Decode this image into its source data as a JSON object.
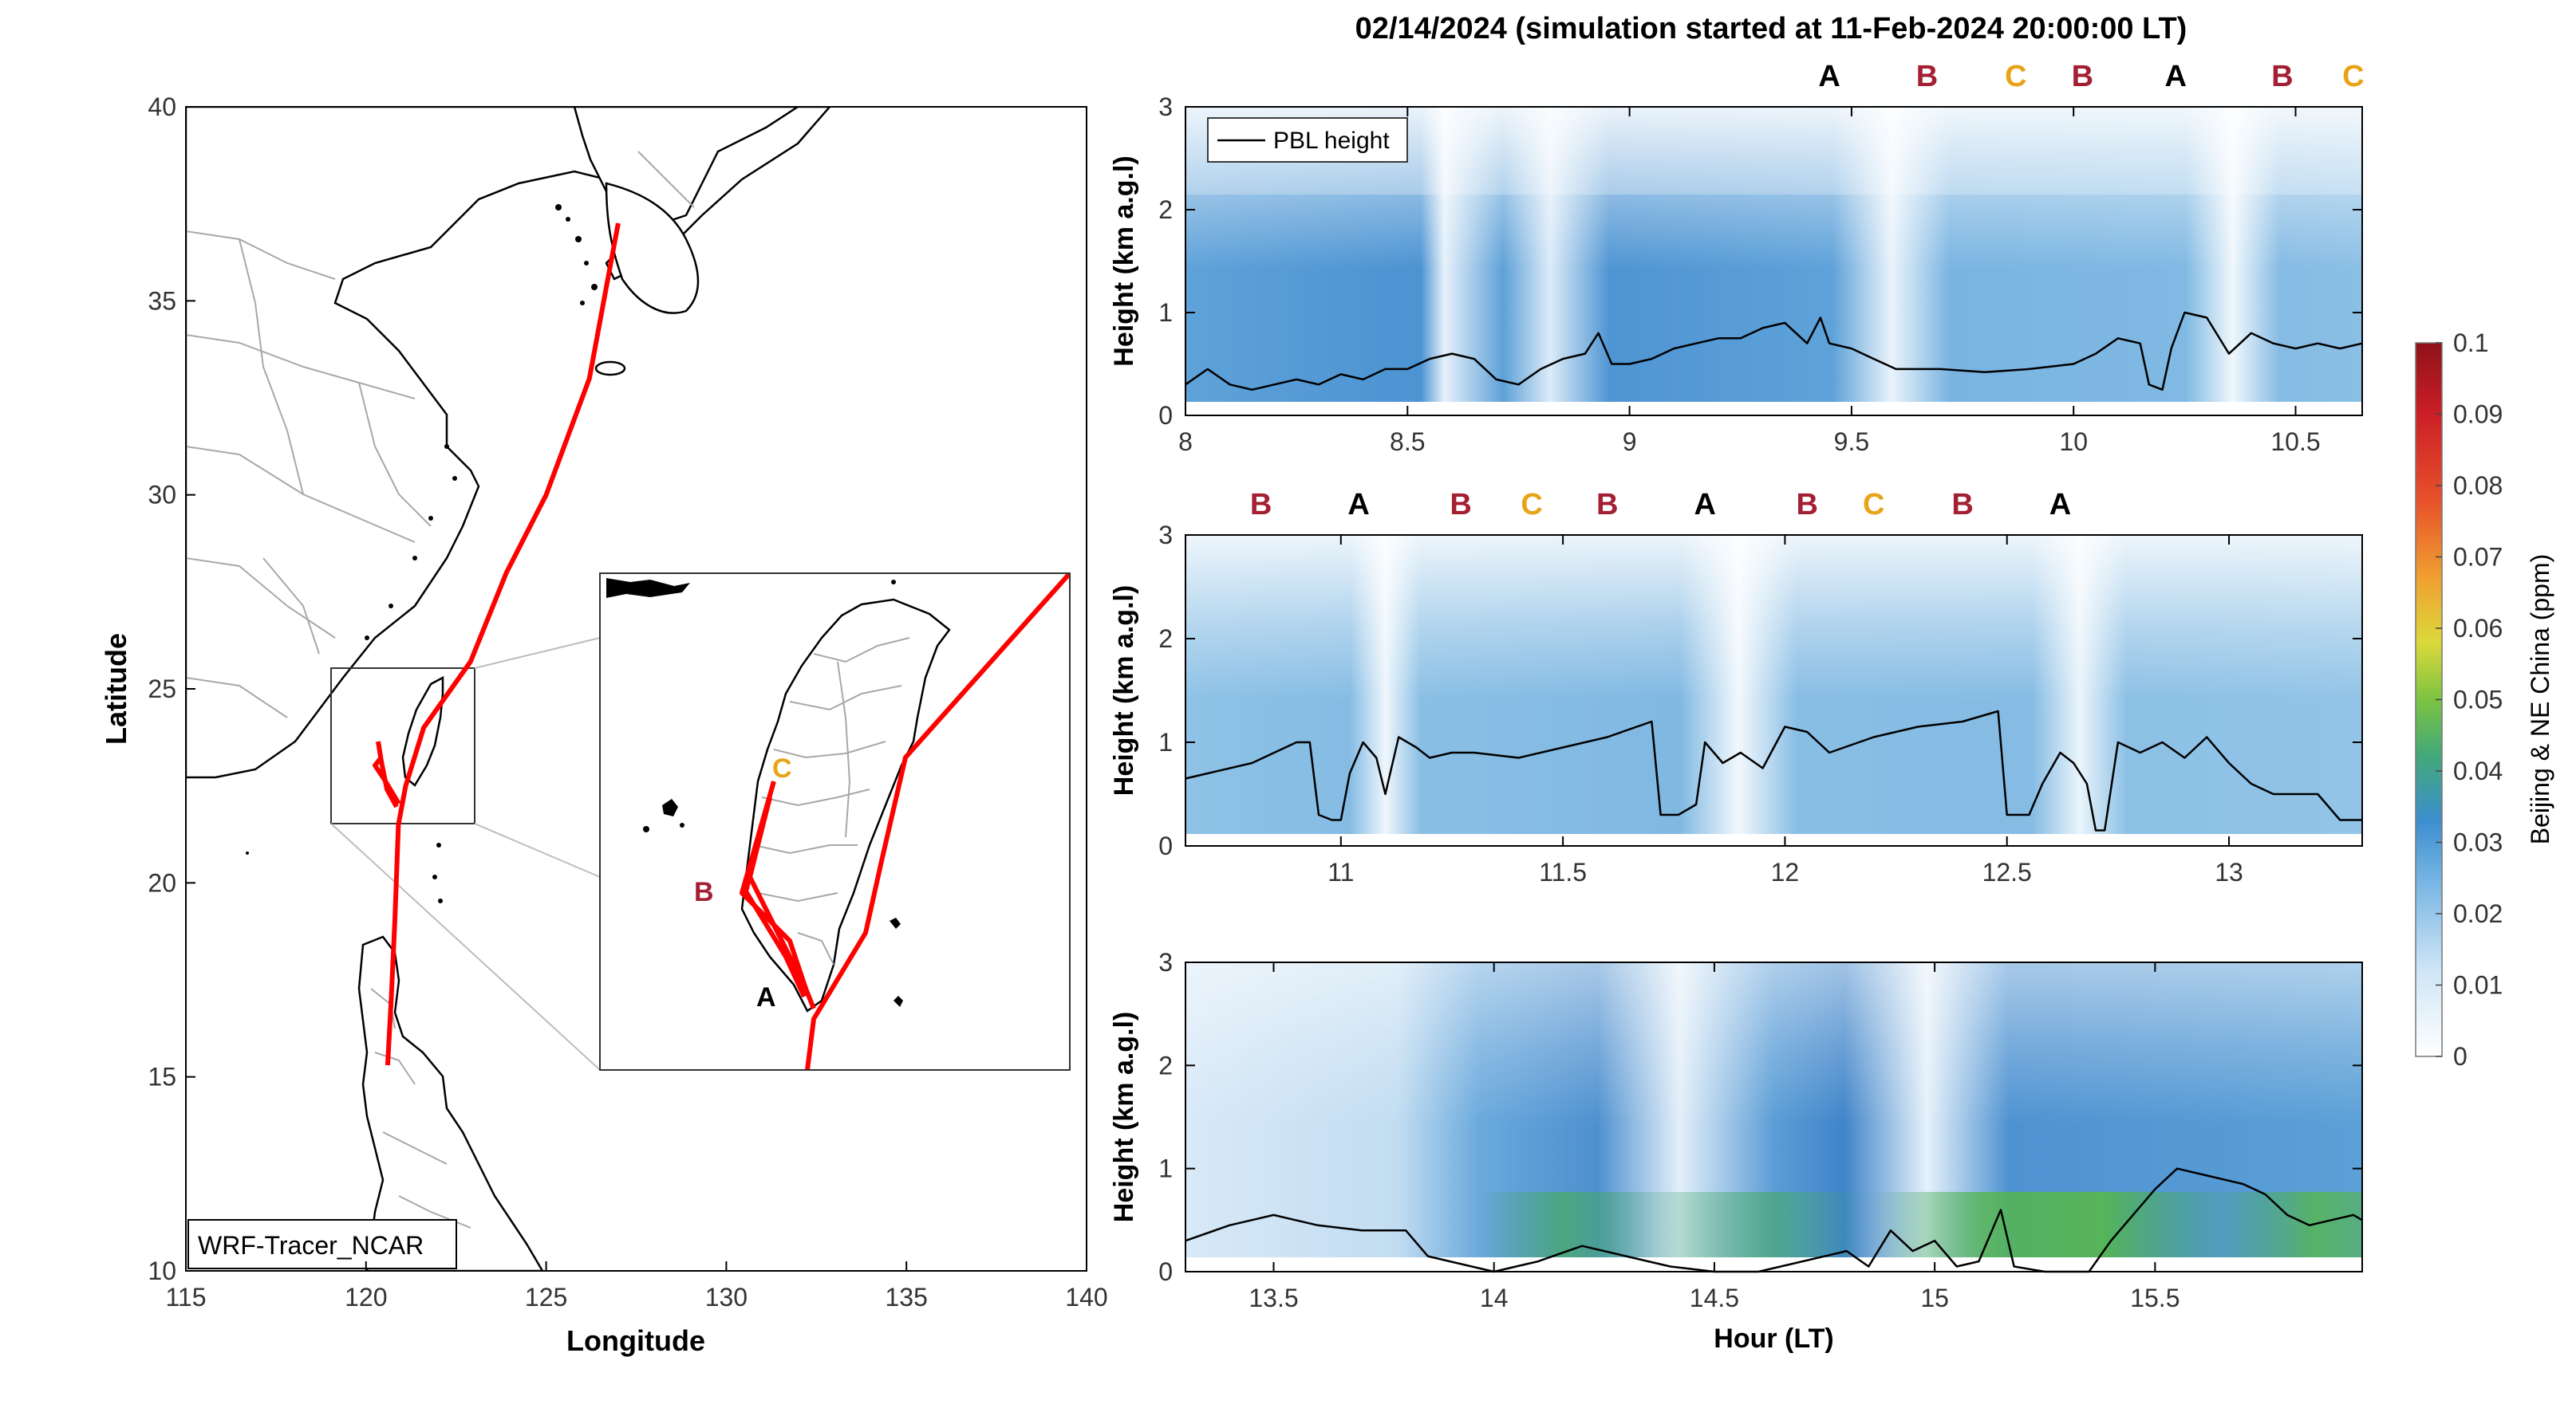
{
  "figure": {
    "title": "02/14/2024 (simulation started at 11-Feb-2024 20:00:00 LT)"
  },
  "map": {
    "xlabel": "Longitude",
    "ylabel": "Latitude",
    "xlim": [
      115,
      140
    ],
    "ylim": [
      10,
      40
    ],
    "xticks": [
      "115",
      "120",
      "125",
      "130",
      "135",
      "140"
    ],
    "yticks": [
      "10",
      "15",
      "20",
      "25",
      "30",
      "35",
      "40"
    ],
    "model_label": "WRF-Tracer_NCAR",
    "track_color": "#ff0000",
    "track": [
      {
        "lon": 127.0,
        "lat": 37.0
      },
      {
        "lon": 126.2,
        "lat": 33.0
      },
      {
        "lon": 125.0,
        "lat": 30.0
      },
      {
        "lon": 123.9,
        "lat": 28.0
      },
      {
        "lon": 122.9,
        "lat": 25.7
      },
      {
        "lon": 121.6,
        "lat": 24.0
      },
      {
        "lon": 121.1,
        "lat": 22.5
      },
      {
        "lon": 120.9,
        "lat": 21.5
      },
      {
        "lon": 120.8,
        "lat": 19.0
      },
      {
        "lon": 120.7,
        "lat": 17.0
      },
      {
        "lon": 120.6,
        "lat": 15.3
      }
    ],
    "inset_letters": [
      {
        "letter": "C",
        "color": "#e8a317"
      },
      {
        "letter": "B",
        "color": "#a31f34"
      },
      {
        "letter": "A",
        "color": "#000000"
      }
    ]
  },
  "chart_data": [
    {
      "type": "heatmap",
      "ylabel": "Height (km a.g.l)",
      "xlim": [
        8.0,
        10.65
      ],
      "ylim": [
        0,
        3
      ],
      "xticks": [
        "8",
        "8.5",
        "9",
        "9.5",
        "10",
        "10.5"
      ],
      "yticks": [
        "0",
        "1",
        "2",
        "3"
      ],
      "legend": "PBL height",
      "markers": [
        {
          "x": 9.45,
          "label": "A",
          "color": "#000000"
        },
        {
          "x": 9.67,
          "label": "B",
          "color": "#a31f34"
        },
        {
          "x": 9.87,
          "label": "C",
          "color": "#e8a317"
        },
        {
          "x": 10.02,
          "label": "B",
          "color": "#a31f34"
        },
        {
          "x": 10.23,
          "label": "A",
          "color": "#000000"
        },
        {
          "x": 10.47,
          "label": "B",
          "color": "#a31f34"
        },
        {
          "x": 10.63,
          "label": "C",
          "color": "#e8a317"
        }
      ],
      "pbl": [
        [
          8.0,
          0.3
        ],
        [
          8.05,
          0.45
        ],
        [
          8.1,
          0.3
        ],
        [
          8.15,
          0.25
        ],
        [
          8.2,
          0.3
        ],
        [
          8.25,
          0.35
        ],
        [
          8.3,
          0.3
        ],
        [
          8.35,
          0.4
        ],
        [
          8.4,
          0.35
        ],
        [
          8.45,
          0.45
        ],
        [
          8.5,
          0.45
        ],
        [
          8.55,
          0.55
        ],
        [
          8.6,
          0.6
        ],
        [
          8.65,
          0.55
        ],
        [
          8.7,
          0.35
        ],
        [
          8.75,
          0.3
        ],
        [
          8.8,
          0.45
        ],
        [
          8.85,
          0.55
        ],
        [
          8.9,
          0.6
        ],
        [
          8.93,
          0.8
        ],
        [
          8.96,
          0.5
        ],
        [
          9.0,
          0.5
        ],
        [
          9.05,
          0.55
        ],
        [
          9.1,
          0.65
        ],
        [
          9.15,
          0.7
        ],
        [
          9.2,
          0.75
        ],
        [
          9.25,
          0.75
        ],
        [
          9.3,
          0.85
        ],
        [
          9.35,
          0.9
        ],
        [
          9.4,
          0.7
        ],
        [
          9.43,
          0.95
        ],
        [
          9.45,
          0.7
        ],
        [
          9.5,
          0.65
        ],
        [
          9.55,
          0.55
        ],
        [
          9.6,
          0.45
        ],
        [
          9.7,
          0.45
        ],
        [
          9.8,
          0.42
        ],
        [
          9.9,
          0.45
        ],
        [
          10.0,
          0.5
        ],
        [
          10.05,
          0.6
        ],
        [
          10.1,
          0.75
        ],
        [
          10.15,
          0.7
        ],
        [
          10.17,
          0.3
        ],
        [
          10.2,
          0.25
        ],
        [
          10.22,
          0.65
        ],
        [
          10.25,
          1.0
        ],
        [
          10.3,
          0.95
        ],
        [
          10.35,
          0.6
        ],
        [
          10.4,
          0.8
        ],
        [
          10.45,
          0.7
        ],
        [
          10.5,
          0.65
        ],
        [
          10.55,
          0.7
        ],
        [
          10.6,
          0.65
        ],
        [
          10.65,
          0.7
        ]
      ]
    },
    {
      "type": "heatmap",
      "ylabel": "Height (km a.g.l)",
      "xlim": [
        10.65,
        13.3
      ],
      "ylim": [
        0,
        3
      ],
      "xticks": [
        "11",
        "11.5",
        "12",
        "12.5",
        "13"
      ],
      "yticks": [
        "0",
        "1",
        "2",
        "3"
      ],
      "markers": [
        {
          "x": 10.82,
          "label": "B",
          "color": "#a31f34"
        },
        {
          "x": 11.04,
          "label": "A",
          "color": "#000000"
        },
        {
          "x": 11.27,
          "label": "B",
          "color": "#a31f34"
        },
        {
          "x": 11.43,
          "label": "C",
          "color": "#e8a317"
        },
        {
          "x": 11.6,
          "label": "B",
          "color": "#a31f34"
        },
        {
          "x": 11.82,
          "label": "A",
          "color": "#000000"
        },
        {
          "x": 12.05,
          "label": "B",
          "color": "#a31f34"
        },
        {
          "x": 12.2,
          "label": "C",
          "color": "#e8a317"
        },
        {
          "x": 12.4,
          "label": "B",
          "color": "#a31f34"
        },
        {
          "x": 12.62,
          "label": "A",
          "color": "#000000"
        }
      ],
      "pbl": [
        [
          10.65,
          0.65
        ],
        [
          10.7,
          0.7
        ],
        [
          10.8,
          0.8
        ],
        [
          10.85,
          0.9
        ],
        [
          10.9,
          1.0
        ],
        [
          10.93,
          1.0
        ],
        [
          10.95,
          0.3
        ],
        [
          10.98,
          0.25
        ],
        [
          11.0,
          0.25
        ],
        [
          11.02,
          0.7
        ],
        [
          11.05,
          1.0
        ],
        [
          11.08,
          0.85
        ],
        [
          11.1,
          0.5
        ],
        [
          11.13,
          1.05
        ],
        [
          11.17,
          0.95
        ],
        [
          11.2,
          0.85
        ],
        [
          11.25,
          0.9
        ],
        [
          11.3,
          0.9
        ],
        [
          11.4,
          0.85
        ],
        [
          11.5,
          0.95
        ],
        [
          11.6,
          1.05
        ],
        [
          11.7,
          1.2
        ],
        [
          11.72,
          0.3
        ],
        [
          11.76,
          0.3
        ],
        [
          11.8,
          0.4
        ],
        [
          11.82,
          1.0
        ],
        [
          11.86,
          0.8
        ],
        [
          11.9,
          0.9
        ],
        [
          11.95,
          0.75
        ],
        [
          12.0,
          1.15
        ],
        [
          12.05,
          1.1
        ],
        [
          12.1,
          0.9
        ],
        [
          12.2,
          1.05
        ],
        [
          12.3,
          1.15
        ],
        [
          12.4,
          1.2
        ],
        [
          12.48,
          1.3
        ],
        [
          12.5,
          0.3
        ],
        [
          12.55,
          0.3
        ],
        [
          12.58,
          0.6
        ],
        [
          12.62,
          0.9
        ],
        [
          12.65,
          0.8
        ],
        [
          12.68,
          0.6
        ],
        [
          12.7,
          0.15
        ],
        [
          12.72,
          0.15
        ],
        [
          12.75,
          1.0
        ],
        [
          12.8,
          0.9
        ],
        [
          12.85,
          1.0
        ],
        [
          12.9,
          0.85
        ],
        [
          12.95,
          1.05
        ],
        [
          13.0,
          0.8
        ],
        [
          13.05,
          0.6
        ],
        [
          13.1,
          0.5
        ],
        [
          13.2,
          0.5
        ],
        [
          13.25,
          0.25
        ],
        [
          13.3,
          0.25
        ]
      ]
    },
    {
      "type": "heatmap",
      "xlabel": "Hour (LT)",
      "ylabel": "Height (km a.g.l)",
      "xlim": [
        13.3,
        15.97
      ],
      "ylim": [
        0,
        3
      ],
      "xticks": [
        "13.5",
        "14",
        "14.5",
        "15",
        "15.5"
      ],
      "yticks": [
        "0",
        "1",
        "2",
        "3"
      ],
      "pbl": [
        [
          13.3,
          0.3
        ],
        [
          13.4,
          0.45
        ],
        [
          13.5,
          0.55
        ],
        [
          13.6,
          0.45
        ],
        [
          13.7,
          0.4
        ],
        [
          13.8,
          0.4
        ],
        [
          13.85,
          0.15
        ],
        [
          13.9,
          0.1
        ],
        [
          14.0,
          0.0
        ],
        [
          14.1,
          0.1
        ],
        [
          14.2,
          0.25
        ],
        [
          14.3,
          0.15
        ],
        [
          14.4,
          0.05
        ],
        [
          14.5,
          0.0
        ],
        [
          14.6,
          0.0
        ],
        [
          14.7,
          0.1
        ],
        [
          14.8,
          0.2
        ],
        [
          14.85,
          0.05
        ],
        [
          14.9,
          0.4
        ],
        [
          14.95,
          0.2
        ],
        [
          15.0,
          0.3
        ],
        [
          15.05,
          0.05
        ],
        [
          15.1,
          0.1
        ],
        [
          15.15,
          0.6
        ],
        [
          15.18,
          0.05
        ],
        [
          15.25,
          0.0
        ],
        [
          15.35,
          0.0
        ],
        [
          15.4,
          0.3
        ],
        [
          15.5,
          0.8
        ],
        [
          15.55,
          1.0
        ],
        [
          15.6,
          0.95
        ],
        [
          15.65,
          0.9
        ],
        [
          15.7,
          0.85
        ],
        [
          15.75,
          0.75
        ],
        [
          15.8,
          0.55
        ],
        [
          15.85,
          0.45
        ],
        [
          15.9,
          0.5
        ],
        [
          15.95,
          0.55
        ],
        [
          15.97,
          0.5
        ]
      ]
    }
  ],
  "colorbar": {
    "label": "Beijing & NE China (ppm)",
    "range": [
      0,
      0.1
    ],
    "ticks": [
      "0",
      "0.01",
      "0.02",
      "0.03",
      "0.04",
      "0.05",
      "0.06",
      "0.07",
      "0.08",
      "0.09",
      "0.1"
    ]
  }
}
